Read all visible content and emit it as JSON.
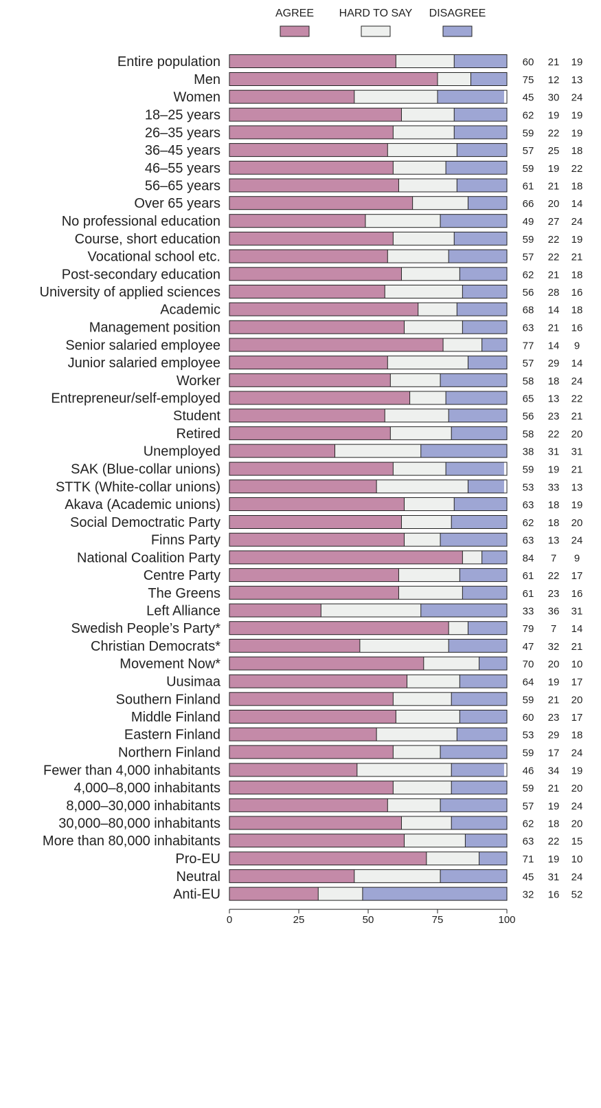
{
  "chart_data": {
    "type": "bar",
    "stacked": true,
    "orientation": "horizontal",
    "xlim": [
      0,
      100
    ],
    "xticks": [
      0,
      25,
      50,
      75,
      100
    ],
    "grid": false,
    "legend_position": "top",
    "series": [
      {
        "name": "AGREE",
        "color": "#c48aa8"
      },
      {
        "name": "HARD TO SAY",
        "color": "#eef0ee"
      },
      {
        "name": "DISAGREE",
        "color": "#9ea6d4"
      }
    ],
    "groups": [
      {
        "rows": [
          {
            "label": "Entire population",
            "values": [
              60,
              21,
              19
            ]
          }
        ]
      },
      {
        "rows": [
          {
            "label": "Men",
            "values": [
              75,
              12,
              13
            ]
          },
          {
            "label": "Women",
            "values": [
              45,
              30,
              24
            ]
          }
        ]
      },
      {
        "rows": [
          {
            "label": "18–25 years",
            "values": [
              62,
              19,
              19
            ]
          },
          {
            "label": "26–35 years",
            "values": [
              59,
              22,
              19
            ]
          },
          {
            "label": "36–45 years",
            "values": [
              57,
              25,
              18
            ]
          },
          {
            "label": "46–55 years",
            "values": [
              59,
              19,
              22
            ]
          },
          {
            "label": "56–65 years",
            "values": [
              61,
              21,
              18
            ]
          },
          {
            "label": "Over 65 years",
            "values": [
              66,
              20,
              14
            ]
          }
        ]
      },
      {
        "rows": [
          {
            "label": "No professional education",
            "values": [
              49,
              27,
              24
            ]
          },
          {
            "label": "Course, short education",
            "values": [
              59,
              22,
              19
            ]
          },
          {
            "label": "Vocational school etc.",
            "values": [
              57,
              22,
              21
            ]
          },
          {
            "label": "Post-secondary education",
            "values": [
              62,
              21,
              18
            ]
          },
          {
            "label": "University of applied sciences",
            "values": [
              56,
              28,
              16
            ]
          },
          {
            "label": "Academic",
            "values": [
              68,
              14,
              18
            ]
          }
        ]
      },
      {
        "rows": [
          {
            "label": "Management position",
            "values": [
              63,
              21,
              16
            ]
          },
          {
            "label": "Senior salaried employee",
            "values": [
              77,
              14,
              9
            ]
          },
          {
            "label": "Junior salaried employee",
            "values": [
              57,
              29,
              14
            ]
          },
          {
            "label": "Worker",
            "values": [
              58,
              18,
              24
            ]
          },
          {
            "label": "Entrepreneur/self-employed",
            "values": [
              65,
              13,
              22
            ]
          },
          {
            "label": "Student",
            "values": [
              56,
              23,
              21
            ]
          },
          {
            "label": "Retired",
            "values": [
              58,
              22,
              20
            ]
          },
          {
            "label": "Unemployed",
            "values": [
              38,
              31,
              31
            ]
          }
        ]
      },
      {
        "rows": [
          {
            "label": "SAK (Blue-collar unions)",
            "values": [
              59,
              19,
              21
            ]
          },
          {
            "label": "STTK (White-collar unions)",
            "values": [
              53,
              33,
              13
            ]
          },
          {
            "label": "Akava (Academic unions)",
            "values": [
              63,
              18,
              19
            ]
          }
        ]
      },
      {
        "rows": [
          {
            "label": "Social Democtratic Party",
            "values": [
              62,
              18,
              20
            ]
          },
          {
            "label": "Finns Party",
            "values": [
              63,
              13,
              24
            ]
          },
          {
            "label": "National Coalition Party",
            "values": [
              84,
              7,
              9
            ]
          },
          {
            "label": "Centre Party",
            "values": [
              61,
              22,
              17
            ]
          },
          {
            "label": "The Greens",
            "values": [
              61,
              23,
              16
            ]
          },
          {
            "label": "Left Alliance",
            "values": [
              33,
              36,
              31
            ]
          },
          {
            "label": "Swedish People’s Party*",
            "values": [
              79,
              7,
              14
            ]
          },
          {
            "label": "Christian Democrats*",
            "values": [
              47,
              32,
              21
            ]
          },
          {
            "label": "Movement Now*",
            "values": [
              70,
              20,
              10
            ]
          }
        ]
      },
      {
        "rows": [
          {
            "label": "Uusimaa",
            "values": [
              64,
              19,
              17
            ]
          },
          {
            "label": "Southern Finland",
            "values": [
              59,
              21,
              20
            ]
          },
          {
            "label": "Middle Finland",
            "values": [
              60,
              23,
              17
            ]
          },
          {
            "label": "Eastern Finland",
            "values": [
              53,
              29,
              18
            ]
          },
          {
            "label": "Northern Finland",
            "values": [
              59,
              17,
              24
            ]
          }
        ]
      },
      {
        "rows": [
          {
            "label": "Fewer than 4,000 inhabitants",
            "values": [
              46,
              34,
              19
            ]
          },
          {
            "label": "4,000–8,000 inhabitants",
            "values": [
              59,
              21,
              20
            ]
          },
          {
            "label": "8,000–30,000 inhabitants",
            "values": [
              57,
              19,
              24
            ]
          },
          {
            "label": "30,000–80,000 inhabitants",
            "values": [
              62,
              18,
              20
            ]
          },
          {
            "label": "More than 80,000 inhabitants",
            "values": [
              63,
              22,
              15
            ]
          }
        ]
      },
      {
        "rows": [
          {
            "label": "Pro-EU",
            "values": [
              71,
              19,
              10
            ]
          },
          {
            "label": "Neutral",
            "values": [
              45,
              31,
              24
            ]
          },
          {
            "label": "Anti-EU",
            "values": [
              32,
              16,
              52
            ]
          }
        ]
      }
    ]
  }
}
